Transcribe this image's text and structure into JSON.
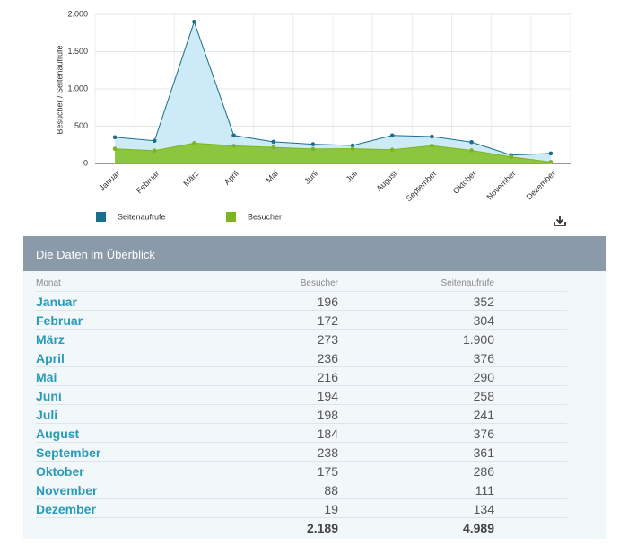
{
  "chart_data": {
    "type": "area",
    "y_label": "Besucher / Seitenaufrufe",
    "categories": [
      "Januar",
      "Februar",
      "März",
      "April",
      "Mai",
      "Juni",
      "Juli",
      "August",
      "September",
      "Oktober",
      "November",
      "Dezember"
    ],
    "series": [
      {
        "name": "Seitenaufrufe",
        "color": "#1a6e8e",
        "fill": "#cdebf6",
        "values": [
          352,
          304,
          1900,
          376,
          290,
          258,
          241,
          376,
          361,
          286,
          111,
          134
        ]
      },
      {
        "name": "Besucher",
        "color": "#7ab51d",
        "fill": "#8cc63f",
        "values": [
          196,
          172,
          273,
          236,
          216,
          194,
          198,
          184,
          238,
          175,
          88,
          19
        ]
      }
    ],
    "ylim": [
      0,
      2000
    ],
    "yticks": [
      0,
      500,
      {
        "value": 1000,
        "label": "1.000"
      },
      {
        "value": 1500,
        "label": "1.500"
      },
      {
        "value": 2000,
        "label": "2.000"
      }
    ],
    "grid": true
  },
  "table": {
    "title": "Die Daten im Überblick",
    "columns": [
      "Monat",
      "Besucher",
      "Seitenaufrufe"
    ],
    "rows": [
      [
        "Januar",
        "196",
        "352"
      ],
      [
        "Februar",
        "172",
        "304"
      ],
      [
        "März",
        "273",
        "1.900"
      ],
      [
        "April",
        "236",
        "376"
      ],
      [
        "Mai",
        "216",
        "290"
      ],
      [
        "Juni",
        "194",
        "258"
      ],
      [
        "Juli",
        "198",
        "241"
      ],
      [
        "August",
        "184",
        "376"
      ],
      [
        "September",
        "238",
        "361"
      ],
      [
        "Oktober",
        "175",
        "286"
      ],
      [
        "November",
        "88",
        "111"
      ],
      [
        "Dezember",
        "19",
        "134"
      ]
    ],
    "totals": [
      "2.189",
      "4.989"
    ]
  }
}
